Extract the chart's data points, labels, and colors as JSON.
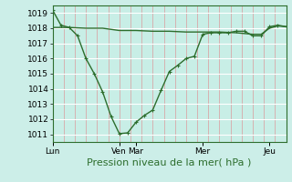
{
  "bg_color": "#cceee8",
  "plot_bg_color": "#c8eee6",
  "grid_color_v": "#d8a8a8",
  "grid_color_h": "#ffffff",
  "line_color": "#2d6e2d",
  "ylim": [
    1010.5,
    1019.5
  ],
  "yticks": [
    1011,
    1012,
    1013,
    1014,
    1015,
    1016,
    1017,
    1018,
    1019
  ],
  "xlabel": "Pression niveau de la mer( hPa )",
  "xlabel_fontsize": 8,
  "tick_fontsize": 6.5,
  "day_labels": [
    "Lun",
    "Ven",
    "Mar",
    "Mer",
    "Jeu"
  ],
  "day_positions": [
    0,
    48,
    60,
    108,
    156
  ],
  "total_points": 168,
  "line1_x": [
    0,
    6,
    12,
    18,
    24,
    30,
    36,
    42,
    48,
    54,
    60,
    66,
    72,
    78,
    84,
    90,
    96,
    102,
    108,
    114,
    120,
    126,
    132,
    138,
    144,
    150,
    156,
    162,
    168
  ],
  "line1_y": [
    1019.2,
    1018.2,
    1018.05,
    1017.5,
    1016.0,
    1015.0,
    1013.8,
    1012.2,
    1011.05,
    1011.1,
    1011.8,
    1012.25,
    1012.6,
    1013.9,
    1015.15,
    1015.55,
    1016.0,
    1016.15,
    1017.6,
    1017.7,
    1017.7,
    1017.7,
    1017.8,
    1017.8,
    1017.5,
    1017.5,
    1018.1,
    1018.2,
    1018.1
  ],
  "line2_x": [
    0,
    6,
    12,
    24,
    36,
    48,
    60,
    72,
    84,
    96,
    108,
    120,
    132,
    144,
    150,
    156,
    162,
    168
  ],
  "line2_y": [
    1018.05,
    1018.05,
    1018.05,
    1018.0,
    1018.0,
    1017.85,
    1017.85,
    1017.8,
    1017.8,
    1017.75,
    1017.75,
    1017.75,
    1017.7,
    1017.6,
    1017.6,
    1018.0,
    1018.15,
    1018.1
  ],
  "n_vgrid": 21
}
